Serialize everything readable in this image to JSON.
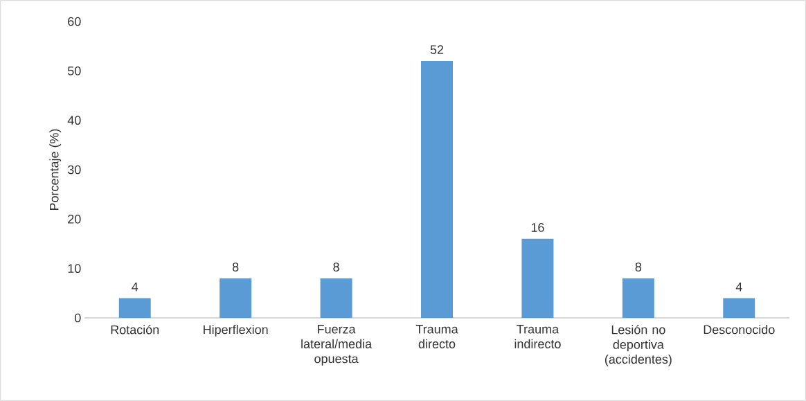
{
  "chart_data": {
    "type": "bar",
    "ylabel": "Porcentaje (%)",
    "categories": [
      "Rotación",
      "Hiperflexion",
      "Fuerza lateral/media opuesta",
      "Trauma directo",
      "Trauma indirecto",
      "Lesión no deportiva (accidentes)",
      "Desconocido"
    ],
    "values": [
      4,
      8,
      8,
      52,
      16,
      8,
      4
    ],
    "color": "#5b9bd5",
    "ylim": [
      0,
      60
    ],
    "yticks": [
      0,
      10,
      20,
      30,
      40,
      50,
      60
    ],
    "data_labels": true
  }
}
